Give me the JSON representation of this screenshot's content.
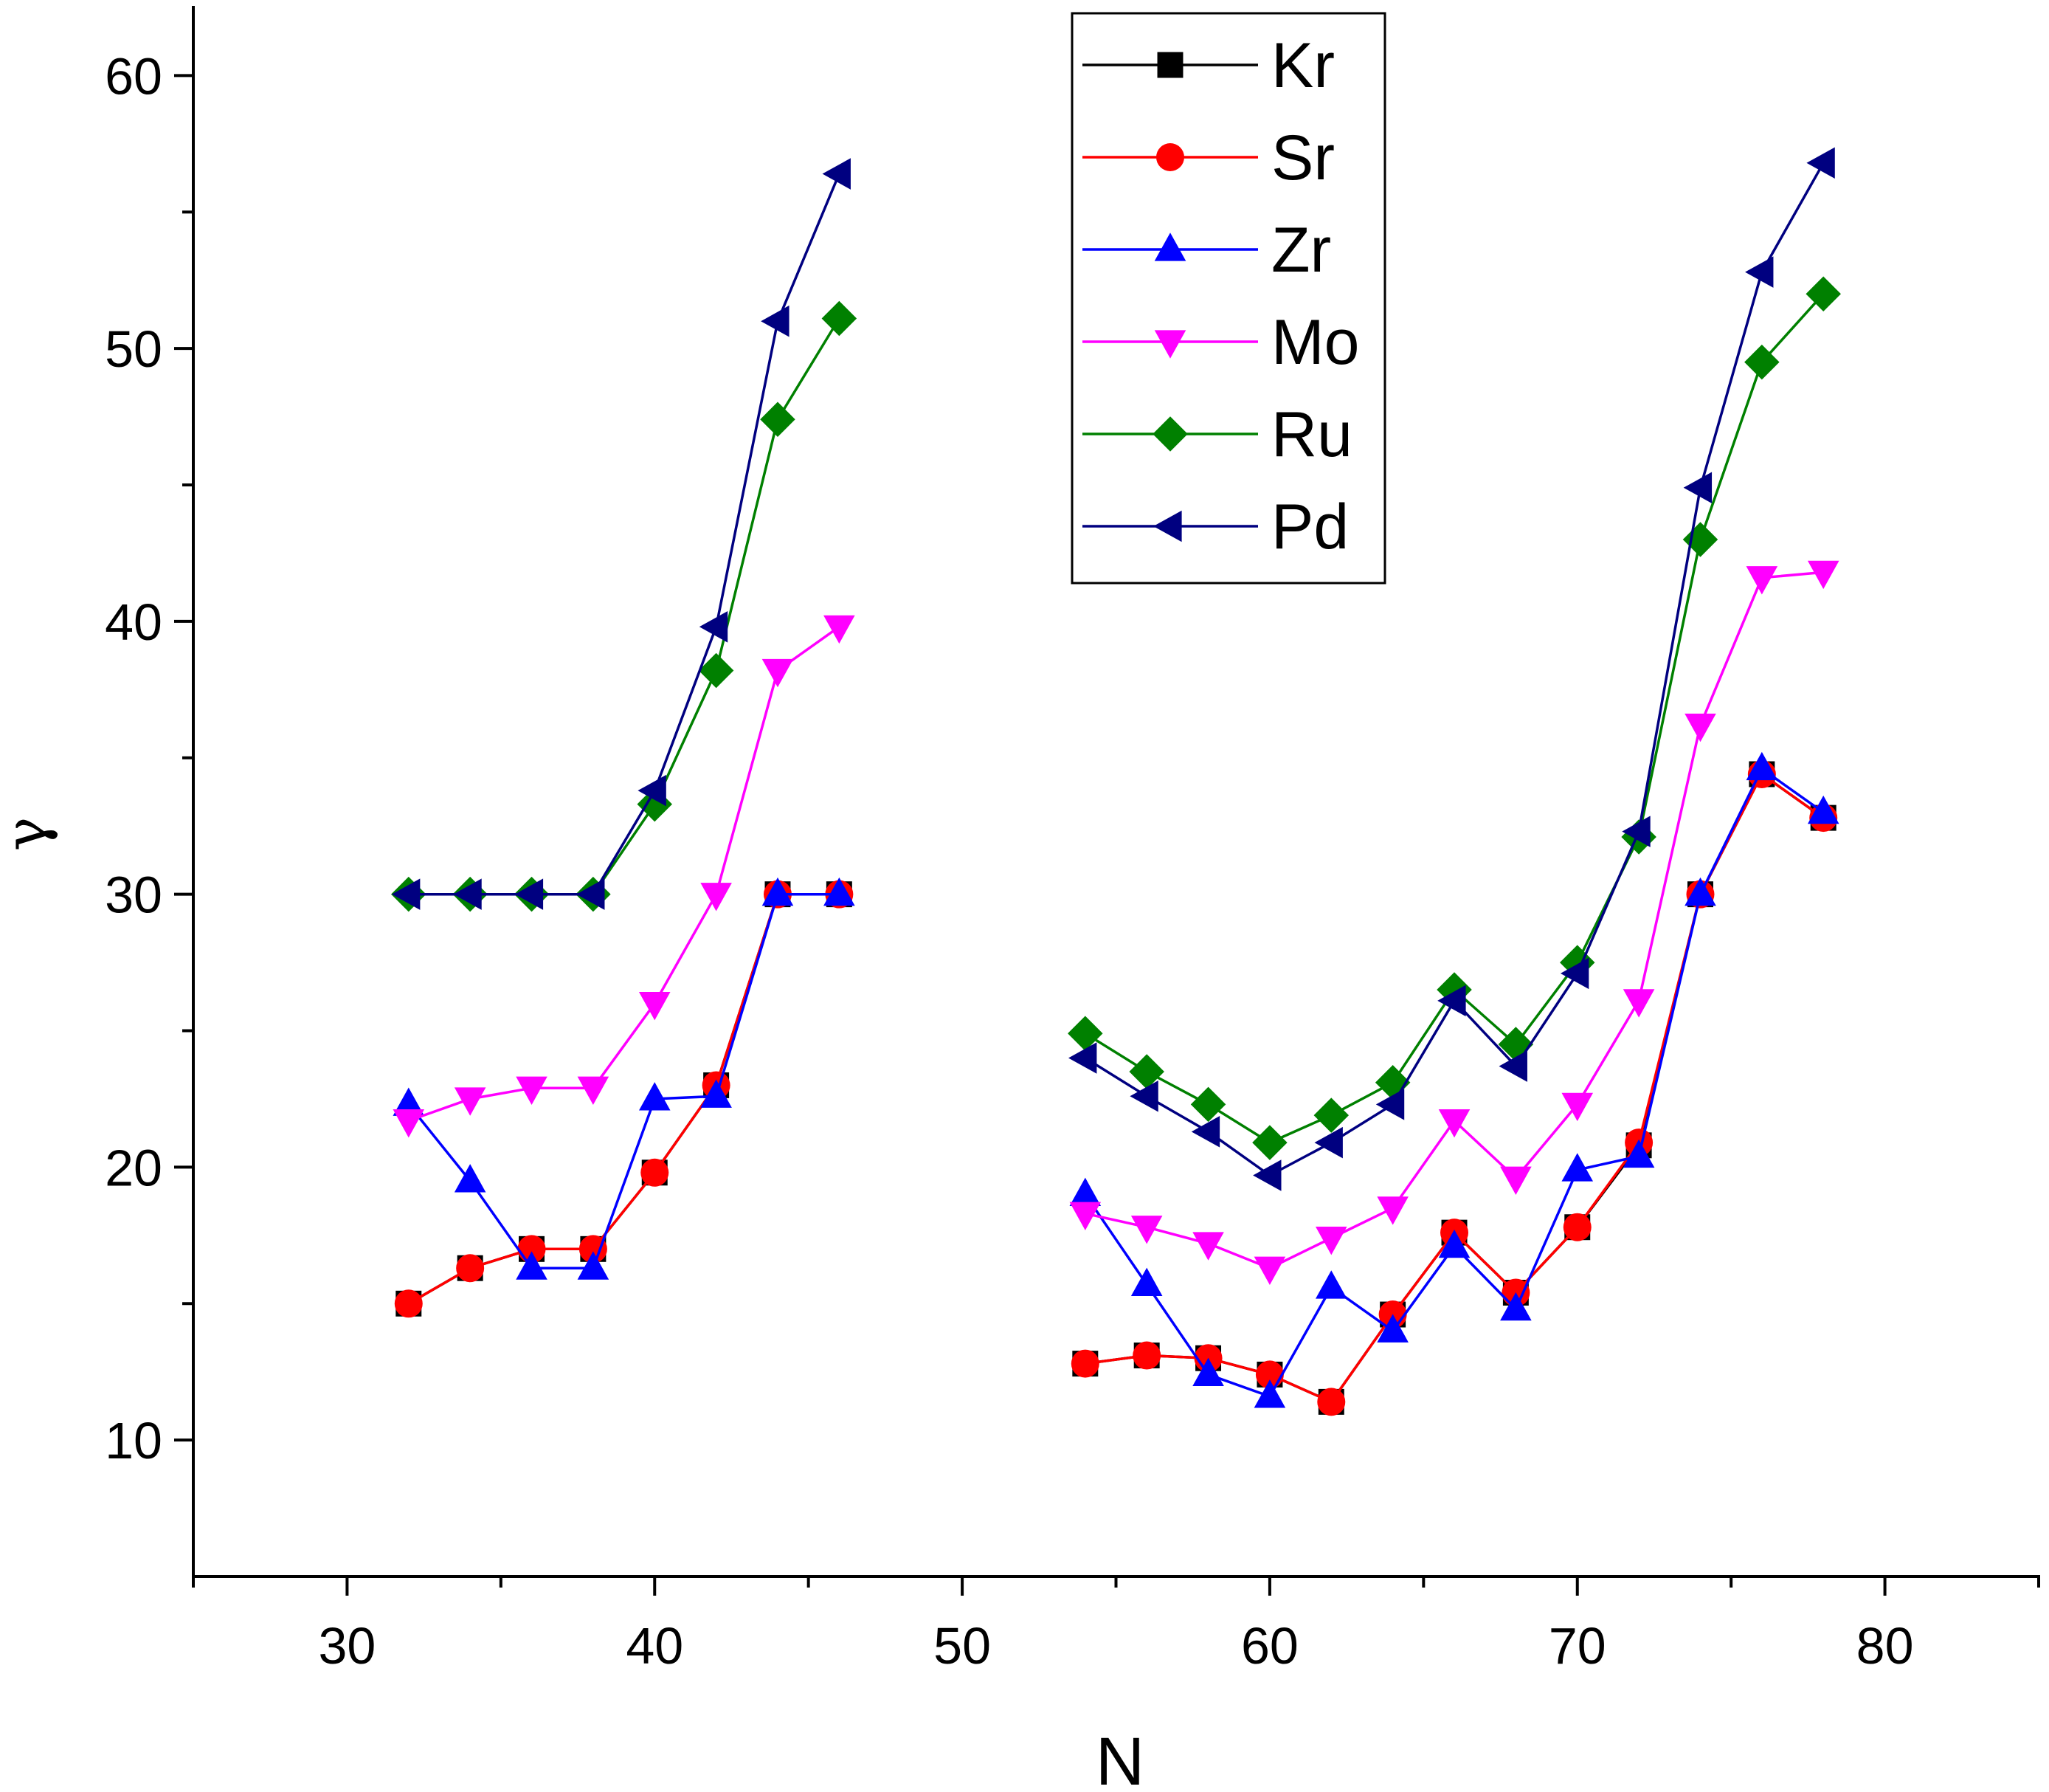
{
  "chart_data": {
    "type": "line",
    "title": "",
    "xlabel": "N",
    "ylabel": "γ",
    "xlim": [
      25,
      85
    ],
    "ylim": [
      5,
      62.5
    ],
    "xticks": [
      30,
      40,
      50,
      60,
      70,
      80
    ],
    "yticks": [
      10,
      20,
      30,
      40,
      50,
      60
    ],
    "grid": false,
    "legend_position": "top-center",
    "series": [
      {
        "name": "Kr",
        "color": "#000000",
        "marker": "square",
        "points": [
          [
            32,
            15.0
          ],
          [
            34,
            16.3
          ],
          [
            36,
            17.0
          ],
          [
            38,
            17.0
          ],
          [
            40,
            19.8
          ],
          [
            42,
            23.0
          ],
          [
            44,
            30.0
          ],
          [
            46,
            30.0
          ],
          [
            54,
            12.8
          ],
          [
            56,
            13.1
          ],
          [
            58,
            13.0
          ],
          [
            60,
            12.4
          ],
          [
            62,
            11.4
          ],
          [
            64,
            14.6
          ],
          [
            66,
            17.6
          ],
          [
            68,
            15.4
          ],
          [
            70,
            17.8
          ],
          [
            72,
            20.8
          ],
          [
            74,
            30.0
          ],
          [
            76,
            34.4
          ],
          [
            78,
            32.8
          ]
        ]
      },
      {
        "name": "Sr",
        "color": "#ff0000",
        "marker": "circle",
        "points": [
          [
            32,
            15.0
          ],
          [
            34,
            16.3
          ],
          [
            36,
            17.0
          ],
          [
            38,
            17.0
          ],
          [
            40,
            19.8
          ],
          [
            42,
            23.0
          ],
          [
            44,
            30.0
          ],
          [
            46,
            30.0
          ],
          [
            54,
            12.8
          ],
          [
            56,
            13.1
          ],
          [
            58,
            13.0
          ],
          [
            60,
            12.4
          ],
          [
            62,
            11.4
          ],
          [
            64,
            14.6
          ],
          [
            66,
            17.6
          ],
          [
            68,
            15.4
          ],
          [
            70,
            17.8
          ],
          [
            72,
            20.9
          ],
          [
            74,
            30.0
          ],
          [
            76,
            34.4
          ],
          [
            78,
            32.8
          ]
        ]
      },
      {
        "name": "Zr",
        "color": "#0000ff",
        "marker": "triangle-up",
        "points": [
          [
            32,
            22.3
          ],
          [
            34,
            19.5
          ],
          [
            36,
            16.3
          ],
          [
            38,
            16.3
          ],
          [
            40,
            22.5
          ],
          [
            42,
            22.6
          ],
          [
            44,
            30.0
          ],
          [
            46,
            30.0
          ],
          [
            54,
            19.0
          ],
          [
            56,
            15.7
          ],
          [
            58,
            12.4
          ],
          [
            60,
            11.6
          ],
          [
            62,
            15.6
          ],
          [
            64,
            14.0
          ],
          [
            66,
            17.1
          ],
          [
            68,
            14.8
          ],
          [
            70,
            19.9
          ],
          [
            72,
            20.4
          ],
          [
            74,
            30.0
          ],
          [
            76,
            34.6
          ],
          [
            78,
            33.0
          ]
        ]
      },
      {
        "name": "Mo",
        "color": "#ff00ff",
        "marker": "triangle-down",
        "points": [
          [
            32,
            21.7
          ],
          [
            34,
            22.5
          ],
          [
            36,
            22.9
          ],
          [
            38,
            22.9
          ],
          [
            40,
            26.0
          ],
          [
            42,
            30.0
          ],
          [
            44,
            38.2
          ],
          [
            46,
            39.8
          ],
          [
            54,
            18.3
          ],
          [
            56,
            17.8
          ],
          [
            58,
            17.2
          ],
          [
            60,
            16.3
          ],
          [
            62,
            17.4
          ],
          [
            64,
            18.5
          ],
          [
            66,
            21.7
          ],
          [
            68,
            19.6
          ],
          [
            70,
            22.3
          ],
          [
            72,
            26.1
          ],
          [
            74,
            36.2
          ],
          [
            76,
            41.6
          ],
          [
            78,
            41.8
          ]
        ]
      },
      {
        "name": "Ru",
        "color": "#008000",
        "marker": "diamond",
        "points": [
          [
            32,
            30.0
          ],
          [
            34,
            30.0
          ],
          [
            36,
            30.0
          ],
          [
            38,
            30.0
          ],
          [
            40,
            33.3
          ],
          [
            42,
            38.2
          ],
          [
            44,
            47.4
          ],
          [
            46,
            51.1
          ],
          [
            54,
            24.9
          ],
          [
            56,
            23.5
          ],
          [
            58,
            22.3
          ],
          [
            60,
            20.9
          ],
          [
            62,
            21.9
          ],
          [
            64,
            23.1
          ],
          [
            66,
            26.5
          ],
          [
            68,
            24.5
          ],
          [
            70,
            27.5
          ],
          [
            72,
            32.1
          ],
          [
            74,
            43.0
          ],
          [
            76,
            49.5
          ],
          [
            78,
            52.0
          ]
        ]
      },
      {
        "name": "Pd",
        "color": "#000080",
        "marker": "triangle-left",
        "points": [
          [
            32,
            30.0
          ],
          [
            34,
            30.0
          ],
          [
            36,
            30.0
          ],
          [
            38,
            30.0
          ],
          [
            40,
            33.8
          ],
          [
            42,
            39.8
          ],
          [
            44,
            51.0
          ],
          [
            46,
            56.4
          ],
          [
            54,
            24.0
          ],
          [
            56,
            22.6
          ],
          [
            58,
            21.3
          ],
          [
            60,
            19.7
          ],
          [
            62,
            20.9
          ],
          [
            64,
            22.3
          ],
          [
            66,
            26.1
          ],
          [
            68,
            23.7
          ],
          [
            70,
            27.1
          ],
          [
            72,
            32.3
          ],
          [
            74,
            44.9
          ],
          [
            76,
            52.8
          ],
          [
            78,
            56.8
          ]
        ]
      }
    ]
  }
}
